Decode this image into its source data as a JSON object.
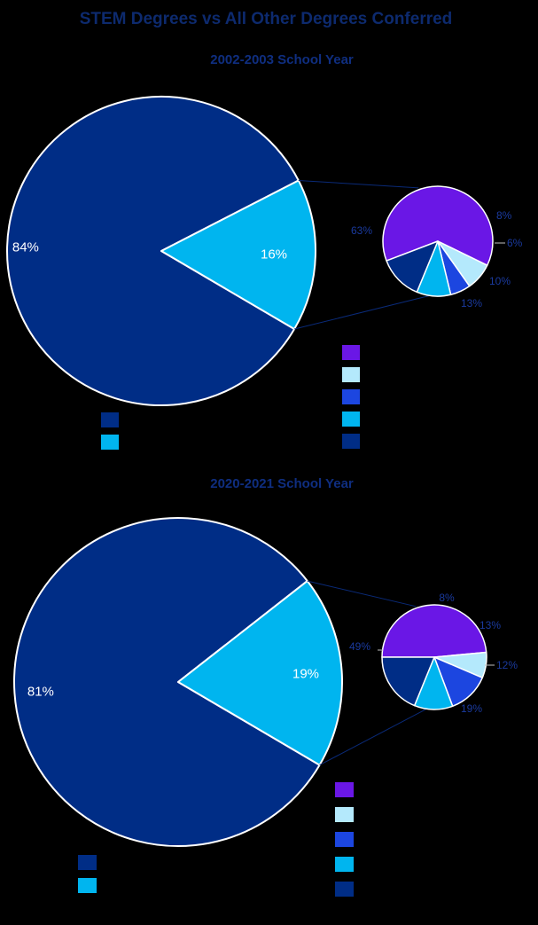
{
  "title": "STEM Degrees vs All Other Degrees Conferred",
  "colors": {
    "title": "#0d2a6e",
    "subtitle": "#0f2e80",
    "navy": "#002d86",
    "cyan": "#00b5ef",
    "purple": "#6a17e6",
    "light_blue": "#b4e9fc",
    "royal_blue": "#1c46e0",
    "small_label": "#1a3a9e",
    "connector": "#0a2a78"
  },
  "chart_data": [
    {
      "type": "pie",
      "subtype": "pie-of-pie",
      "title": "2002-2003 School Year",
      "main": {
        "slices": [
          {
            "label": "84%",
            "value": 84,
            "color": "#002d86"
          },
          {
            "label": "16%",
            "value": 16,
            "color": "#00b5ef"
          }
        ]
      },
      "breakout": {
        "slices": [
          {
            "label": "63%",
            "value": 63,
            "color": "#6a17e6"
          },
          {
            "label": "8%",
            "value": 8,
            "color": "#b4e9fc"
          },
          {
            "label": "6%",
            "value": 6,
            "color": "#1c46e0"
          },
          {
            "label": "10%",
            "value": 10,
            "color": "#00b5ef"
          },
          {
            "label": "13%",
            "value": 13,
            "color": "#002d86"
          }
        ]
      },
      "legend_main": [
        "#002d86",
        "#00b5ef"
      ],
      "legend_breakout": [
        "#6a17e6",
        "#b4e9fc",
        "#1c46e0",
        "#00b5ef",
        "#002d86"
      ]
    },
    {
      "type": "pie",
      "subtype": "pie-of-pie",
      "title": "2020-2021 School Year",
      "main": {
        "slices": [
          {
            "label": "81%",
            "value": 81,
            "color": "#002d86"
          },
          {
            "label": "19%",
            "value": 19,
            "color": "#00b5ef"
          }
        ]
      },
      "breakout": {
        "slices": [
          {
            "label": "49%",
            "value": 49,
            "color": "#6a17e6"
          },
          {
            "label": "8%",
            "value": 8,
            "color": "#b4e9fc"
          },
          {
            "label": "13%",
            "value": 13,
            "color": "#1c46e0"
          },
          {
            "label": "12%",
            "value": 12,
            "color": "#00b5ef"
          },
          {
            "label": "19%",
            "value": 19,
            "color": "#002d86"
          }
        ]
      },
      "legend_main": [
        "#002d86",
        "#00b5ef"
      ],
      "legend_breakout": [
        "#6a17e6",
        "#b4e9fc",
        "#1c46e0",
        "#00b5ef",
        "#002d86"
      ]
    }
  ]
}
